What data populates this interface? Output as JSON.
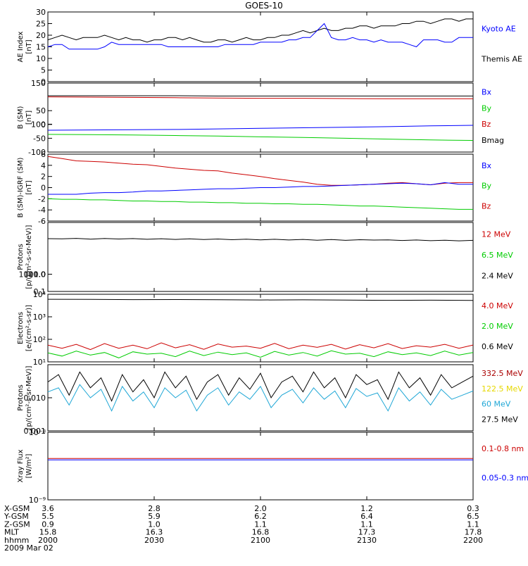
{
  "title": "GOES-10",
  "colors": {
    "black": "#000000",
    "blue": "#0000ff",
    "green": "#00cc00",
    "red": "#cc0000",
    "yellow": "#e6d800",
    "cyan": "#1fa7d6",
    "darkred": "#aa0000"
  },
  "chart_data": [
    {
      "type": "line",
      "ylabel": "AE Index\n[nT]",
      "ylim": [
        0,
        30
      ],
      "yticks": [
        "0",
        "5",
        "10",
        "15",
        "20",
        "25",
        "30"
      ],
      "legend": [
        {
          "name": "Kyoto AE",
          "color": "#0000ff"
        },
        {
          "name": "Themis AE",
          "color": "#000000"
        }
      ],
      "series": [
        {
          "name": "Themis AE",
          "color": "#000000",
          "values": [
            18,
            19,
            20,
            19,
            18,
            19,
            19,
            19,
            20,
            19,
            18,
            19,
            18,
            18,
            17,
            18,
            18,
            19,
            19,
            18,
            19,
            18,
            17,
            17,
            18,
            18,
            17,
            18,
            19,
            18,
            18,
            19,
            19,
            20,
            20,
            21,
            22,
            21,
            22,
            23,
            22,
            22,
            23,
            23,
            24,
            24,
            23,
            24,
            24,
            24,
            25,
            25,
            26,
            26,
            25,
            26,
            27,
            27,
            26,
            27,
            27
          ]
        },
        {
          "name": "Kyoto AE",
          "color": "#0000ff",
          "values": [
            15,
            16,
            16,
            14,
            14,
            14,
            14,
            14,
            15,
            17,
            16,
            16,
            16,
            16,
            16,
            16,
            16,
            15,
            15,
            15,
            15,
            15,
            15,
            15,
            15,
            16,
            16,
            16,
            16,
            16,
            17,
            17,
            17,
            17,
            18,
            18,
            19,
            19,
            22,
            25,
            19,
            18,
            18,
            19,
            18,
            18,
            17,
            18,
            17,
            17,
            17,
            16,
            15,
            18,
            18,
            18,
            17,
            17,
            19,
            19,
            19
          ]
        }
      ]
    },
    {
      "type": "line",
      "ylabel": "B (SM)\n[nT]",
      "ylim": [
        -100,
        150
      ],
      "yticks": [
        "-100",
        "-50",
        "0",
        "50",
        "100",
        "150"
      ],
      "legend": [
        {
          "name": "Bx",
          "color": "#0000ff"
        },
        {
          "name": "By",
          "color": "#00cc00"
        },
        {
          "name": "Bz",
          "color": "#cc0000"
        },
        {
          "name": "Bmag",
          "color": "#000000"
        }
      ],
      "series": [
        {
          "name": "Bmag",
          "color": "#000000",
          "values": [
            104,
            104,
            104,
            104,
            103,
            103,
            103,
            103,
            103,
            103,
            103
          ]
        },
        {
          "name": "Bz",
          "color": "#cc0000",
          "values": [
            100,
            99,
            98,
            97,
            96,
            95,
            95,
            94,
            93,
            93,
            93
          ]
        },
        {
          "name": "Bx",
          "color": "#0000ff",
          "values": [
            -21,
            -20,
            -19,
            -18,
            -16,
            -14,
            -12,
            -10,
            -8,
            -5,
            -3
          ]
        },
        {
          "name": "By",
          "color": "#00cc00",
          "values": [
            -36,
            -37,
            -38,
            -40,
            -42,
            -45,
            -47,
            -50,
            -53,
            -56,
            -58
          ]
        }
      ]
    },
    {
      "type": "line",
      "ylabel": "B (SM)-IGRF (SM)\n[nT]",
      "ylim": [
        -6,
        6
      ],
      "yticks": [
        "-6",
        "-4",
        "-2",
        "0",
        "2",
        "4",
        "6"
      ],
      "legend": [
        {
          "name": "Bx",
          "color": "#0000ff"
        },
        {
          "name": "By",
          "color": "#00cc00"
        },
        {
          "name": "Bz",
          "color": "#cc0000"
        }
      ],
      "series": [
        {
          "name": "Bz",
          "color": "#cc0000",
          "values": [
            5.6,
            5.2,
            4.8,
            4.7,
            4.6,
            4.4,
            4.2,
            4.1,
            3.8,
            3.5,
            3.3,
            3.1,
            3.0,
            2.6,
            2.3,
            2.0,
            1.6,
            1.3,
            1.0,
            0.6,
            0.4,
            0.4,
            0.5,
            0.6,
            0.8,
            0.9,
            0.7,
            0.5,
            0.8,
            0.9,
            0.9
          ]
        },
        {
          "name": "Bx",
          "color": "#0000ff",
          "values": [
            -1.2,
            -1.2,
            -1.2,
            -1.0,
            -0.9,
            -0.9,
            -0.8,
            -0.6,
            -0.6,
            -0.5,
            -0.4,
            -0.3,
            -0.2,
            -0.2,
            -0.1,
            0.0,
            0.0,
            0.1,
            0.2,
            0.2,
            0.3,
            0.4,
            0.5,
            0.6,
            0.7,
            0.8,
            0.7,
            0.5,
            0.9,
            0.6,
            0.6
          ]
        },
        {
          "name": "By",
          "color": "#00cc00",
          "values": [
            -2.0,
            -2.1,
            -2.1,
            -2.2,
            -2.2,
            -2.3,
            -2.4,
            -2.4,
            -2.5,
            -2.5,
            -2.6,
            -2.6,
            -2.7,
            -2.7,
            -2.8,
            -2.8,
            -2.9,
            -2.9,
            -3.0,
            -3.0,
            -3.1,
            -3.2,
            -3.3,
            -3.3,
            -3.4,
            -3.5,
            -3.6,
            -3.7,
            -3.8,
            -3.9,
            -3.9
          ]
        }
      ]
    },
    {
      "type": "line",
      "ylabel": "Protons\n[p/(cm²-s-sr-MeV)]",
      "log": true,
      "ylim": [
        0.1,
        1000
      ],
      "yticks": [
        "0.1",
        "1.0",
        "10.0",
        "100.0",
        "1000.0"
      ],
      "legend": [
        {
          "name": "12 MeV",
          "color": "#cc0000"
        },
        {
          "name": "6.5 MeV",
          "color": "#00cc00"
        },
        {
          "name": "2.4 MeV",
          "color": "#000000"
        }
      ],
      "series": [
        {
          "name": "2.4 MeV",
          "color": "#000000",
          "values": [
            115,
            112,
            120,
            108,
            118,
            110,
            116,
            106,
            114,
            104,
            112,
            102,
            110,
            100,
            108,
            98,
            106,
            96,
            104,
            94,
            102,
            92,
            100,
            95,
            98,
            90,
            96,
            88,
            94,
            86,
            92
          ]
        }
      ]
    },
    {
      "type": "line",
      "ylabel": "Electrons\n[e/(cm²-s-sr)]",
      "log": true,
      "ylim": [
        10,
        10000
      ],
      "yticks": [
        "10¹",
        "10²",
        "10³",
        "10⁴"
      ],
      "legend": [
        {
          "name": "4.0 MeV",
          "color": "#cc0000"
        },
        {
          "name": "2.0 MeV",
          "color": "#00cc00"
        },
        {
          "name": "0.6 MeV",
          "color": "#000000"
        }
      ],
      "series": [
        {
          "name": "0.6 MeV",
          "color": "#000000",
          "values": [
            6000,
            5900,
            5800,
            5850,
            5700,
            5600,
            5650,
            5500,
            5400,
            5450,
            5300
          ]
        },
        {
          "name": "4.0 MeV",
          "color": "#cc0000",
          "values": [
            55,
            40,
            60,
            35,
            65,
            40,
            55,
            38,
            70,
            42,
            58,
            36,
            62,
            45,
            50,
            40,
            66,
            38,
            55,
            44,
            60,
            37,
            58,
            42,
            64,
            39,
            52,
            45,
            60,
            40,
            56
          ]
        },
        {
          "name": "2.0 MeV",
          "color": "#00cc00",
          "values": [
            25,
            18,
            30,
            20,
            26,
            15,
            28,
            22,
            24,
            17,
            30,
            19,
            27,
            21,
            25,
            16,
            29,
            20,
            26,
            18,
            31,
            22,
            24,
            17,
            28,
            21,
            25,
            19,
            30,
            20,
            26
          ]
        }
      ]
    },
    {
      "type": "line",
      "ylabel": "Protons\n[p/(cm²-s-sr-MeV)]",
      "log": true,
      "ylim": [
        0.001,
        0.1
      ],
      "yticks": [
        "0.001",
        "0.010"
      ],
      "legend": [
        {
          "name": "332.5 MeV",
          "color": "#aa0000"
        },
        {
          "name": "122.5 MeV",
          "color": "#e6d800"
        },
        {
          "name": "60 MeV",
          "color": "#1fa7d6"
        },
        {
          "name": "27.5 MeV",
          "color": "#000000"
        }
      ],
      "series": [
        {
          "name": "27.5 MeV",
          "color": "#000000",
          "values": [
            0.03,
            0.05,
            0.012,
            0.06,
            0.02,
            0.04,
            0.008,
            0.05,
            0.015,
            0.035,
            0.01,
            0.06,
            0.02,
            0.045,
            0.009,
            0.03,
            0.05,
            0.012,
            0.04,
            0.018,
            0.055,
            0.01,
            0.03,
            0.045,
            0.015,
            0.06,
            0.02,
            0.04,
            0.01,
            0.05,
            0.025,
            0.035,
            0.009,
            0.06,
            0.02,
            0.04,
            0.012,
            0.05,
            0.02,
            0.03,
            0.045
          ]
        },
        {
          "name": "60 MeV",
          "color": "#1fa7d6",
          "values": [
            0.015,
            0.02,
            0.006,
            0.025,
            0.01,
            0.018,
            0.004,
            0.022,
            0.008,
            0.015,
            0.005,
            0.02,
            0.01,
            0.017,
            0.004,
            0.012,
            0.02,
            0.006,
            0.015,
            0.009,
            0.022,
            0.005,
            0.012,
            0.018,
            0.007,
            0.02,
            0.009,
            0.016,
            0.005,
            0.019,
            0.011,
            0.014,
            0.004,
            0.02,
            0.008,
            0.015,
            0.006,
            0.018,
            0.009,
            0.012,
            0.016
          ]
        }
      ]
    },
    {
      "type": "line",
      "ylabel": "Xray Flux\n[W/m²]",
      "log": true,
      "ylim": [
        1e-09,
        1e-08
      ],
      "yticks": [
        "10⁻⁹",
        "10⁻⁸"
      ],
      "legend": [
        {
          "name": "0.1-0.8 nm",
          "color": "#cc0000"
        },
        {
          "name": "0.05-0.3 nm",
          "color": "#0000ff"
        }
      ],
      "series": [
        {
          "name": "0.1-0.8 nm",
          "color": "#cc0000",
          "values": [
            4.1e-09,
            4.1e-09,
            4.1e-09,
            4.1e-09,
            4.1e-09,
            4.1e-09,
            4.1e-09,
            4.1e-09,
            4.1e-09,
            4.1e-09,
            4.1e-09
          ]
        },
        {
          "name": "0.05-0.3 nm",
          "color": "#0000ff",
          "values": [
            3.9e-09,
            3.9e-09,
            3.9e-09,
            3.9e-09,
            3.9e-09,
            3.9e-09,
            3.9e-09,
            3.9e-09,
            3.9e-09,
            3.9e-09,
            3.9e-09
          ]
        }
      ]
    }
  ],
  "xaxis": {
    "rows": [
      {
        "label": "X-GSM",
        "values": [
          "3.6",
          "2.8",
          "2.0",
          "1.2",
          "0.3"
        ]
      },
      {
        "label": "Y-GSM",
        "values": [
          "5.5",
          "5.9",
          "6.2",
          "6.4",
          "6.5"
        ]
      },
      {
        "label": "Z-GSM",
        "values": [
          "0.9",
          "1.0",
          "1.1",
          "1.1",
          "1.1"
        ]
      },
      {
        "label": "MLT",
        "values": [
          "15.8",
          "16.3",
          "16.8",
          "17.3",
          "17.8"
        ]
      },
      {
        "label": "hhmm",
        "values": [
          "2000",
          "2030",
          "2100",
          "2130",
          "2200"
        ]
      }
    ],
    "date": "2009 Mar 02"
  }
}
